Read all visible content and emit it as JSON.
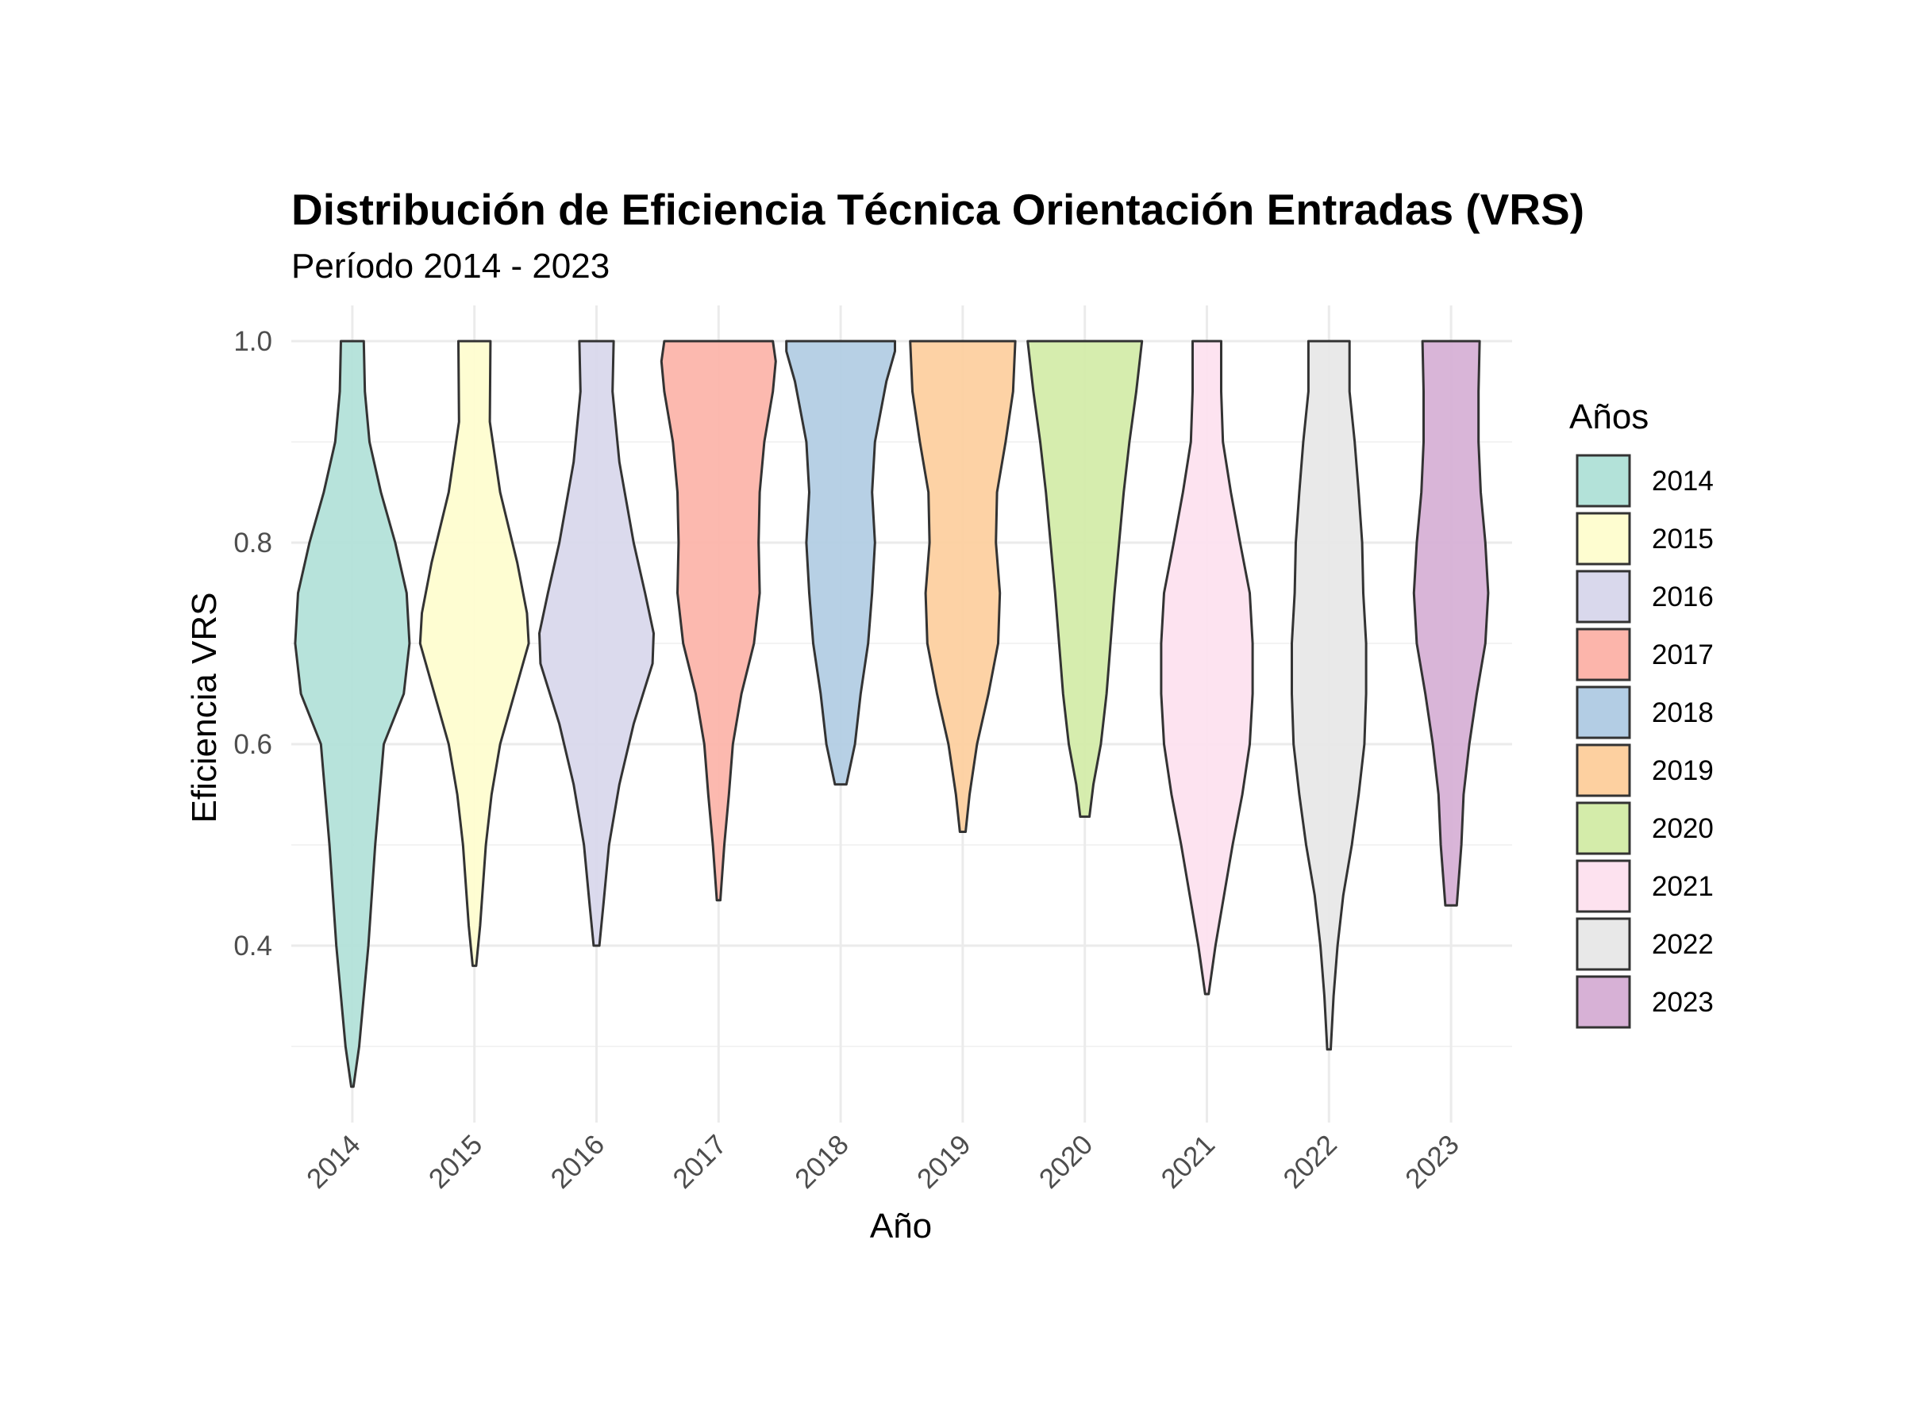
{
  "chart_data": {
    "type": "violin",
    "title": "Distribución de Eficiencia Técnica Orientación Entradas (VRS)",
    "subtitle": "Período 2014 - 2023",
    "xlabel": "Año",
    "ylabel": "Eficiencia VRS",
    "ylim": [
      0.22,
      1.03
    ],
    "y_ticks": [
      "0.4",
      "0.6",
      "0.8",
      "1.0"
    ],
    "y_tick_values": [
      0.4,
      0.6,
      0.8,
      1.0
    ],
    "y_minor_values": [
      0.3,
      0.5,
      0.7,
      0.9
    ],
    "categories": [
      "2014",
      "2015",
      "2016",
      "2017",
      "2018",
      "2019",
      "2020",
      "2021",
      "2022",
      "2023"
    ],
    "grid": true,
    "legend": {
      "title": "Años",
      "position": "right"
    },
    "series": [
      {
        "name": "2014",
        "color": "#b3e2d9",
        "min": 0.26,
        "max": 1.0,
        "density": [
          [
            0.26,
            0.02
          ],
          [
            0.3,
            0.12
          ],
          [
            0.35,
            0.2
          ],
          [
            0.4,
            0.28
          ],
          [
            0.5,
            0.4
          ],
          [
            0.6,
            0.55
          ],
          [
            0.65,
            0.9
          ],
          [
            0.7,
            1.0
          ],
          [
            0.75,
            0.95
          ],
          [
            0.8,
            0.75
          ],
          [
            0.85,
            0.5
          ],
          [
            0.9,
            0.3
          ],
          [
            0.95,
            0.22
          ],
          [
            1.0,
            0.2
          ]
        ]
      },
      {
        "name": "2015",
        "color": "#fefdd0",
        "min": 0.38,
        "max": 1.0,
        "density": [
          [
            0.38,
            0.03
          ],
          [
            0.42,
            0.1
          ],
          [
            0.5,
            0.2
          ],
          [
            0.55,
            0.3
          ],
          [
            0.6,
            0.45
          ],
          [
            0.65,
            0.7
          ],
          [
            0.7,
            0.95
          ],
          [
            0.73,
            0.92
          ],
          [
            0.78,
            0.75
          ],
          [
            0.85,
            0.45
          ],
          [
            0.92,
            0.27
          ],
          [
            1.0,
            0.28
          ]
        ]
      },
      {
        "name": "2016",
        "color": "#d9d8ec",
        "min": 0.4,
        "max": 1.0,
        "density": [
          [
            0.4,
            0.05
          ],
          [
            0.44,
            0.12
          ],
          [
            0.5,
            0.22
          ],
          [
            0.56,
            0.4
          ],
          [
            0.62,
            0.65
          ],
          [
            0.68,
            0.98
          ],
          [
            0.71,
            1.0
          ],
          [
            0.75,
            0.85
          ],
          [
            0.8,
            0.65
          ],
          [
            0.88,
            0.4
          ],
          [
            0.95,
            0.28
          ],
          [
            1.0,
            0.3
          ]
        ]
      },
      {
        "name": "2017",
        "color": "#fcb5ab",
        "min": 0.445,
        "max": 1.0,
        "density": [
          [
            0.445,
            0.03
          ],
          [
            0.5,
            0.1
          ],
          [
            0.55,
            0.18
          ],
          [
            0.6,
            0.25
          ],
          [
            0.65,
            0.4
          ],
          [
            0.7,
            0.62
          ],
          [
            0.75,
            0.72
          ],
          [
            0.8,
            0.7
          ],
          [
            0.85,
            0.72
          ],
          [
            0.9,
            0.8
          ],
          [
            0.95,
            0.95
          ],
          [
            0.98,
            1.0
          ],
          [
            1.0,
            0.95
          ]
        ]
      },
      {
        "name": "2018",
        "color": "#b3cde4",
        "min": 0.56,
        "max": 1.0,
        "density": [
          [
            0.56,
            0.1
          ],
          [
            0.6,
            0.25
          ],
          [
            0.65,
            0.35
          ],
          [
            0.7,
            0.48
          ],
          [
            0.75,
            0.55
          ],
          [
            0.8,
            0.6
          ],
          [
            0.85,
            0.55
          ],
          [
            0.9,
            0.6
          ],
          [
            0.93,
            0.7
          ],
          [
            0.96,
            0.8
          ],
          [
            0.99,
            0.95
          ],
          [
            1.0,
            0.95
          ]
        ]
      },
      {
        "name": "2019",
        "color": "#fdd0a0",
        "min": 0.513,
        "max": 1.0,
        "density": [
          [
            0.513,
            0.05
          ],
          [
            0.55,
            0.12
          ],
          [
            0.6,
            0.25
          ],
          [
            0.65,
            0.45
          ],
          [
            0.7,
            0.62
          ],
          [
            0.75,
            0.65
          ],
          [
            0.8,
            0.58
          ],
          [
            0.85,
            0.6
          ],
          [
            0.9,
            0.75
          ],
          [
            0.95,
            0.88
          ],
          [
            1.0,
            0.92
          ]
        ]
      },
      {
        "name": "2020",
        "color": "#d4ecaa",
        "min": 0.528,
        "max": 1.0,
        "density": [
          [
            0.528,
            0.08
          ],
          [
            0.56,
            0.15
          ],
          [
            0.6,
            0.28
          ],
          [
            0.65,
            0.38
          ],
          [
            0.7,
            0.45
          ],
          [
            0.75,
            0.52
          ],
          [
            0.8,
            0.6
          ],
          [
            0.85,
            0.68
          ],
          [
            0.9,
            0.78
          ],
          [
            0.95,
            0.9
          ],
          [
            1.0,
            1.0
          ]
        ]
      },
      {
        "name": "2021",
        "color": "#fde2ef",
        "min": 0.352,
        "max": 1.0,
        "density": [
          [
            0.352,
            0.03
          ],
          [
            0.4,
            0.15
          ],
          [
            0.45,
            0.3
          ],
          [
            0.5,
            0.45
          ],
          [
            0.55,
            0.62
          ],
          [
            0.6,
            0.75
          ],
          [
            0.65,
            0.8
          ],
          [
            0.7,
            0.8
          ],
          [
            0.75,
            0.75
          ],
          [
            0.8,
            0.58
          ],
          [
            0.85,
            0.42
          ],
          [
            0.9,
            0.28
          ],
          [
            0.95,
            0.25
          ],
          [
            1.0,
            0.25
          ]
        ]
      },
      {
        "name": "2022",
        "color": "#e8e8e8",
        "min": 0.297,
        "max": 1.0,
        "density": [
          [
            0.297,
            0.03
          ],
          [
            0.35,
            0.08
          ],
          [
            0.4,
            0.15
          ],
          [
            0.45,
            0.25
          ],
          [
            0.5,
            0.4
          ],
          [
            0.55,
            0.52
          ],
          [
            0.6,
            0.62
          ],
          [
            0.65,
            0.65
          ],
          [
            0.7,
            0.65
          ],
          [
            0.75,
            0.6
          ],
          [
            0.8,
            0.58
          ],
          [
            0.85,
            0.52
          ],
          [
            0.9,
            0.45
          ],
          [
            0.95,
            0.36
          ],
          [
            1.0,
            0.36
          ]
        ]
      },
      {
        "name": "2023",
        "color": "#d7b1d6",
        "min": 0.44,
        "max": 1.0,
        "density": [
          [
            0.44,
            0.1
          ],
          [
            0.5,
            0.18
          ],
          [
            0.55,
            0.22
          ],
          [
            0.6,
            0.32
          ],
          [
            0.65,
            0.45
          ],
          [
            0.7,
            0.6
          ],
          [
            0.75,
            0.65
          ],
          [
            0.8,
            0.6
          ],
          [
            0.85,
            0.52
          ],
          [
            0.9,
            0.48
          ],
          [
            0.95,
            0.48
          ],
          [
            1.0,
            0.5
          ]
        ]
      }
    ]
  }
}
